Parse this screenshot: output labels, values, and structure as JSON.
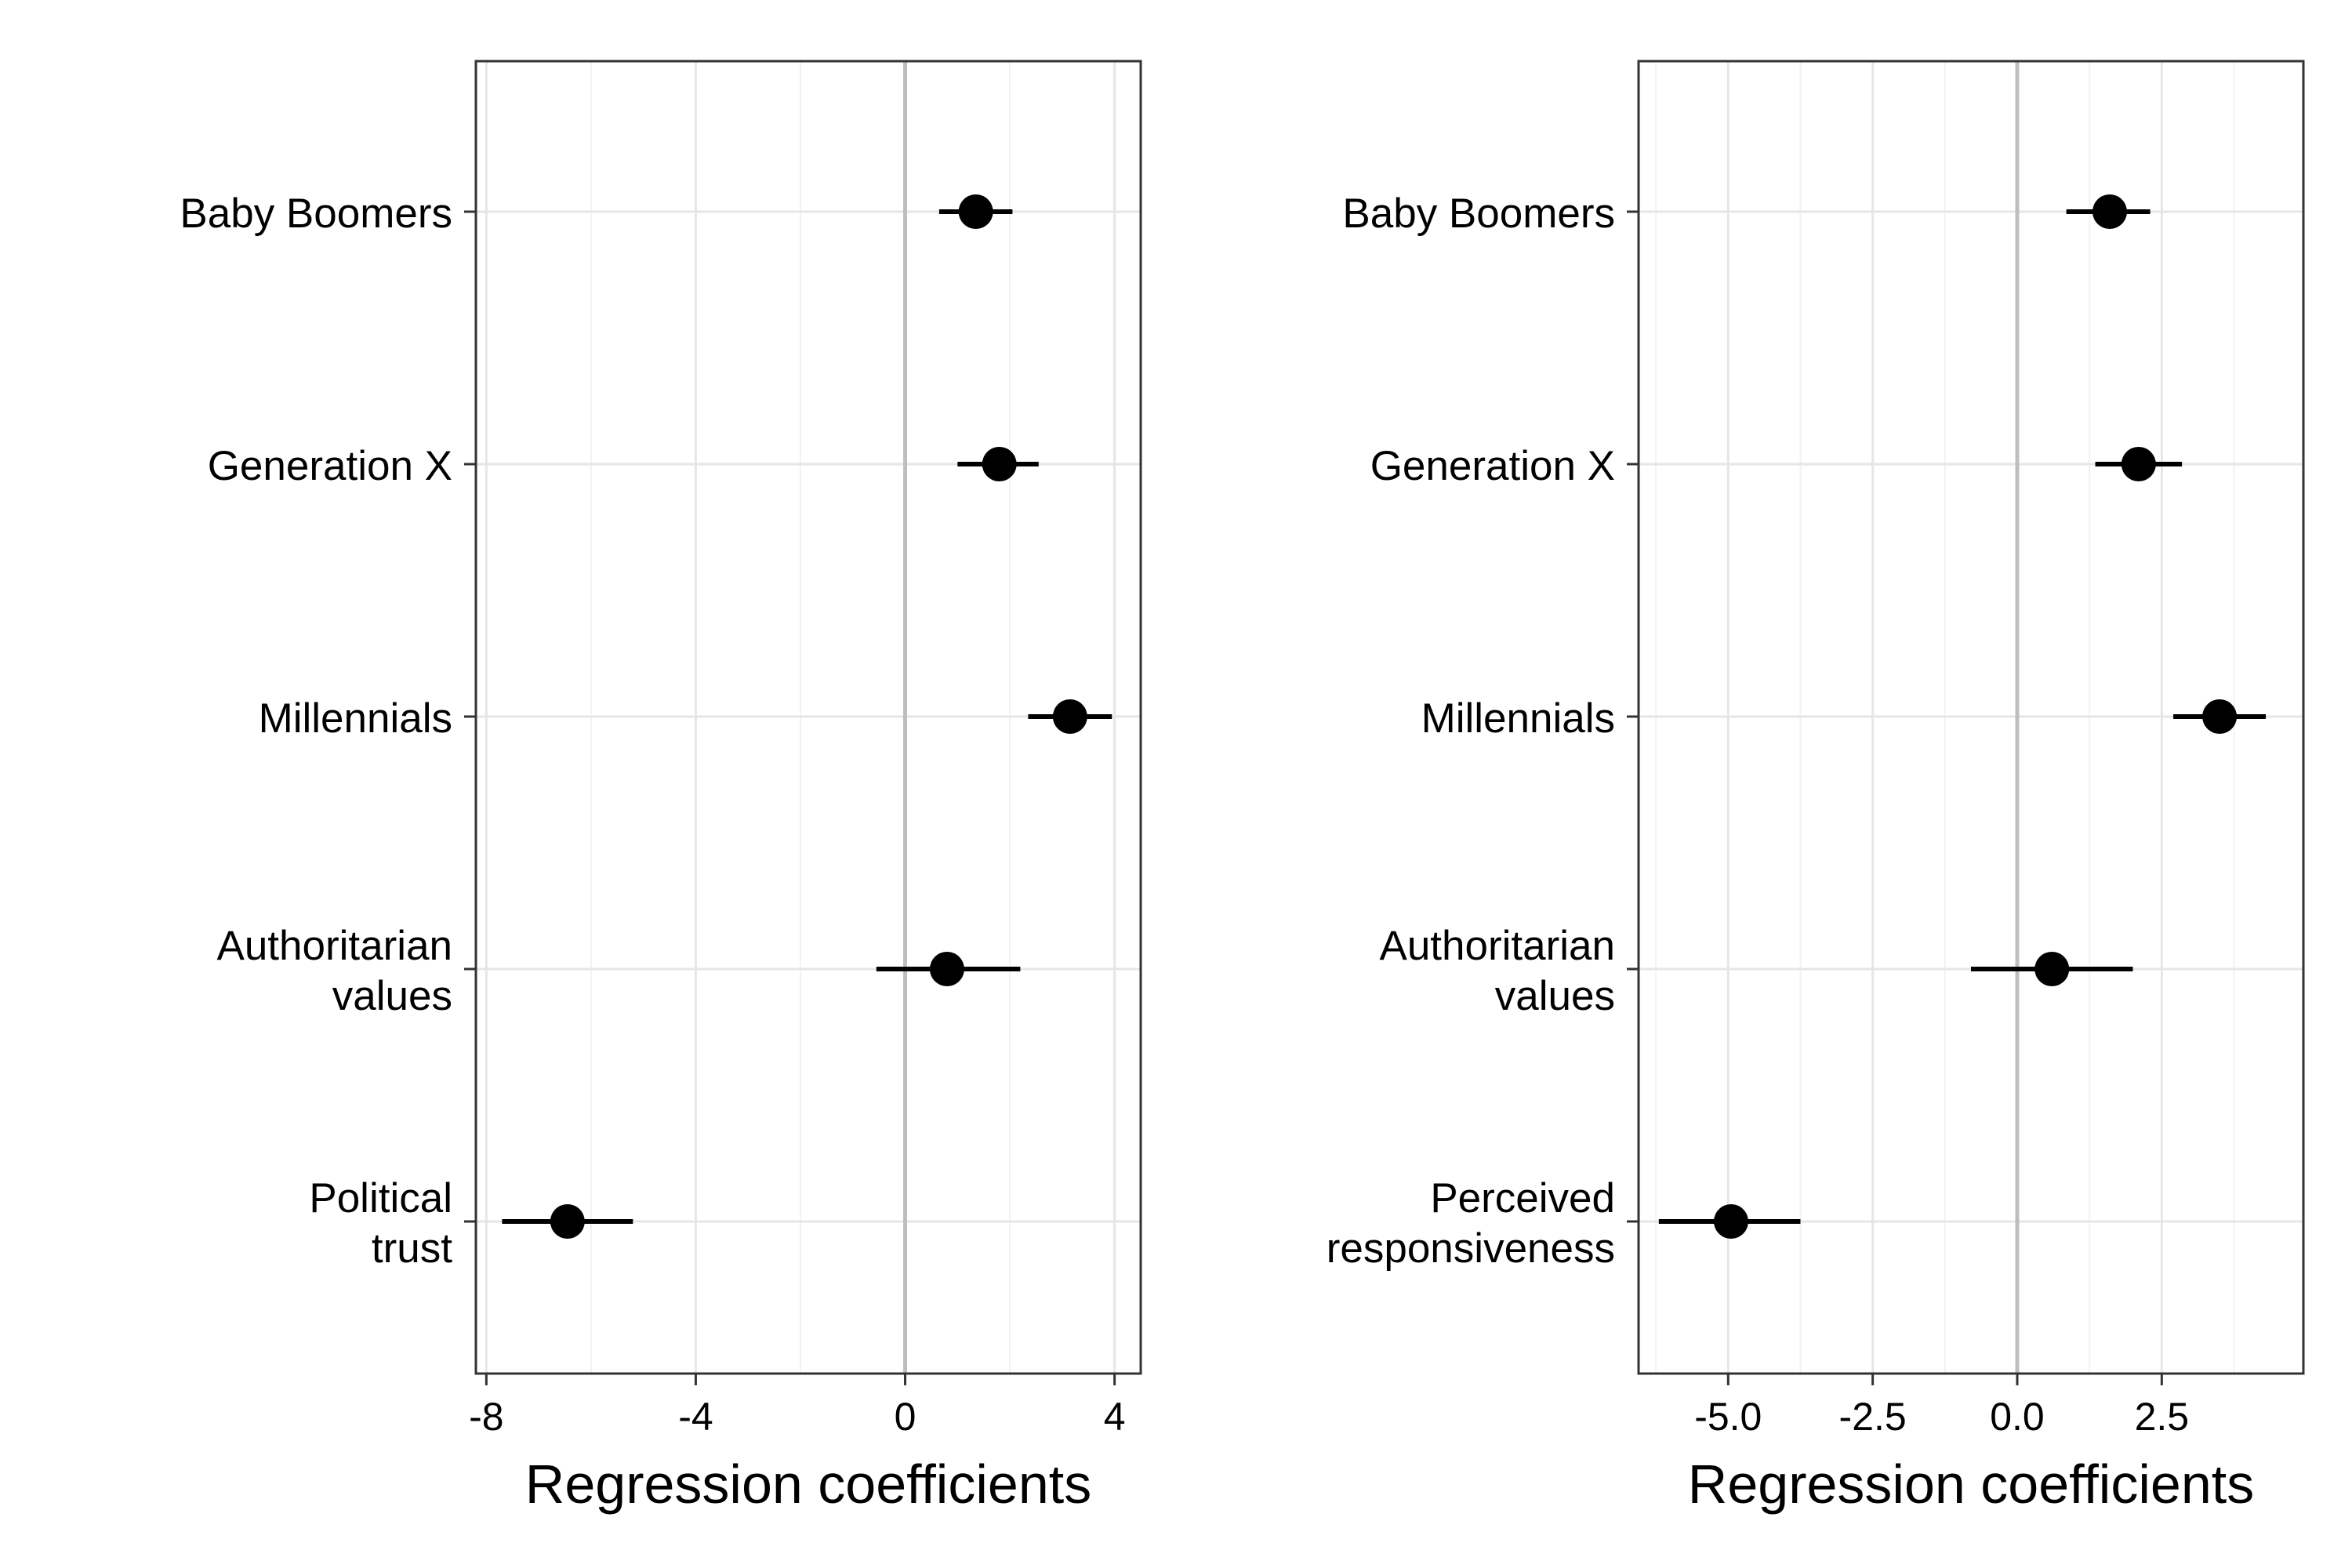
{
  "chart_data": [
    {
      "type": "dot-and-whisker",
      "title": "",
      "xlabel": "Regression coefficients",
      "ylabel": "",
      "xlim": [
        -8.2,
        4.5
      ],
      "x_ticks": [
        -8,
        -4,
        0,
        4
      ],
      "x_tick_labels": [
        "-8",
        "-4",
        "0",
        "4"
      ],
      "minor_ticks": [
        -6,
        -2,
        2
      ],
      "reference_line": 0,
      "grid": true,
      "legend": "none",
      "categories": [
        [
          "Baby Boomers"
        ],
        [
          "Generation X"
        ],
        [
          "Millennials"
        ],
        [
          "Authoritarian",
          "values"
        ],
        [
          "Political",
          "trust"
        ]
      ],
      "estimates": [
        1.35,
        1.8,
        3.15,
        0.8,
        -6.45
      ],
      "ci_low": [
        0.65,
        1.0,
        2.35,
        -0.55,
        -7.7
      ],
      "ci_high": [
        2.05,
        2.55,
        3.95,
        2.2,
        -5.2
      ]
    },
    {
      "type": "dot-and-whisker",
      "title": "",
      "xlabel": "Regression coefficients",
      "ylabel": "",
      "xlim": [
        -6.55,
        4.95
      ],
      "x_ticks": [
        -5.0,
        -2.5,
        0.0,
        2.5
      ],
      "x_tick_labels": [
        "-5.0",
        "-2.5",
        "0.0",
        "2.5"
      ],
      "minor_ticks": [
        -6.25,
        -3.75,
        -1.25,
        1.25,
        3.75
      ],
      "reference_line": 0,
      "grid": true,
      "legend": "none",
      "categories": [
        [
          "Baby Boomers"
        ],
        [
          "Generation X"
        ],
        [
          "Millennials"
        ],
        [
          "Authoritarian",
          "values"
        ],
        [
          "Perceived",
          "responsiveness"
        ]
      ],
      "estimates": [
        1.6,
        2.1,
        3.5,
        0.6,
        -4.95
      ],
      "ci_low": [
        0.85,
        1.35,
        2.7,
        -0.8,
        -6.2
      ],
      "ci_high": [
        2.3,
        2.85,
        4.3,
        2.0,
        -3.75
      ]
    }
  ],
  "colors": {
    "background": "#ffffff",
    "panel_border": "#333333",
    "major_grid": "#e6e6e6",
    "minor_grid": "#f2f2f2",
    "reference_line": "#bebebe",
    "points": "#000000",
    "axis_tick": "#333333"
  }
}
